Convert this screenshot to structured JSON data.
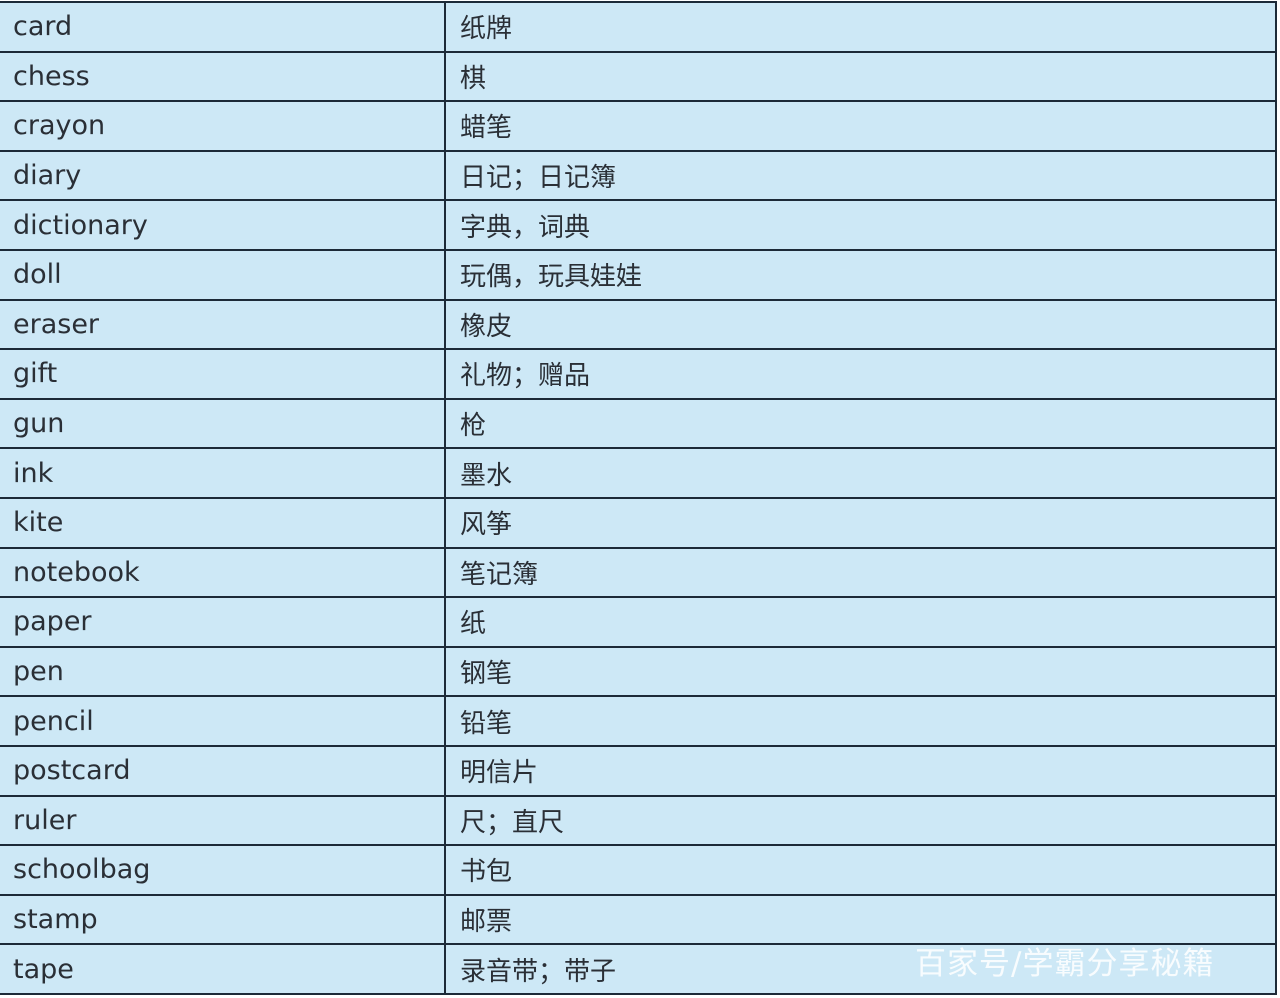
{
  "rows": [
    {
      "en": "card",
      "zh": "纸牌"
    },
    {
      "en": "chess",
      "zh": "棋"
    },
    {
      "en": "crayon",
      "zh": "蜡笔"
    },
    {
      "en": "diary",
      "zh": "日记；日记簿"
    },
    {
      "en": "dictionary",
      "zh": "字典，词典"
    },
    {
      "en": "doll",
      "zh": "玩偶，玩具娃娃"
    },
    {
      "en": "eraser",
      "zh": "橡皮"
    },
    {
      "en": "gift",
      "zh": "礼物；赠品"
    },
    {
      "en": "gun",
      "zh": "枪"
    },
    {
      "en": "ink",
      "zh": "墨水"
    },
    {
      "en": "kite",
      "zh": "风筝"
    },
    {
      "en": "notebook",
      "zh": "笔记簿"
    },
    {
      "en": "paper",
      "zh": "纸"
    },
    {
      "en": "pen",
      "zh": "钢笔"
    },
    {
      "en": "pencil",
      "zh": "铅笔"
    },
    {
      "en": "postcard",
      "zh": "明信片"
    },
    {
      "en": "ruler",
      "zh": "尺；直尺"
    },
    {
      "en": "schoolbag",
      "zh": "书包"
    },
    {
      "en": "stamp",
      "zh": "邮票"
    },
    {
      "en": "tape",
      "zh": "录音带；带子"
    }
  ],
  "watermark": "百家号/学霸分享秘籍",
  "colors": {
    "background": "#cde8f6",
    "border": "#1c2a38"
  }
}
